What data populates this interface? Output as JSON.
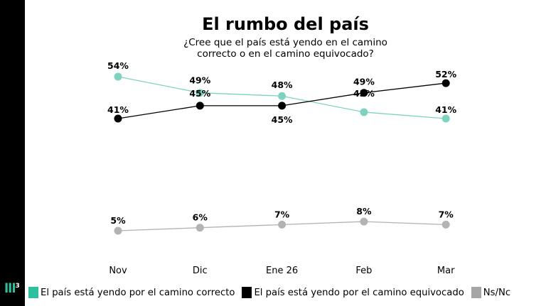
{
  "chart_data": {
    "type": "line",
    "title": "El rumbo del país",
    "subtitle": "¿Cree que el país está yendo en el camino correcto o en el camino equivocado?",
    "categories": [
      "Nov",
      "Dic",
      "Ene 26",
      "Feb",
      "Mar"
    ],
    "series": [
      {
        "name": "El país está yendo por el camino correcto",
        "color": "#7dd3c0",
        "legend_color": "#2ebf9d",
        "values": [
          54,
          49,
          48,
          43,
          41
        ]
      },
      {
        "name": "El país está yendo por el camino equivocado",
        "color": "#000000",
        "legend_color": "#000000",
        "values": [
          41,
          45,
          45,
          49,
          52
        ]
      },
      {
        "name": "Ns/Nc",
        "color": "#b3b3b3",
        "legend_color": "#a6a6a6",
        "values": [
          5,
          6,
          7,
          8,
          7
        ]
      }
    ],
    "axis_break": true,
    "grid": false,
    "legend_position": "bottom"
  },
  "logo": {
    "text": "lll",
    "sup": "3"
  }
}
